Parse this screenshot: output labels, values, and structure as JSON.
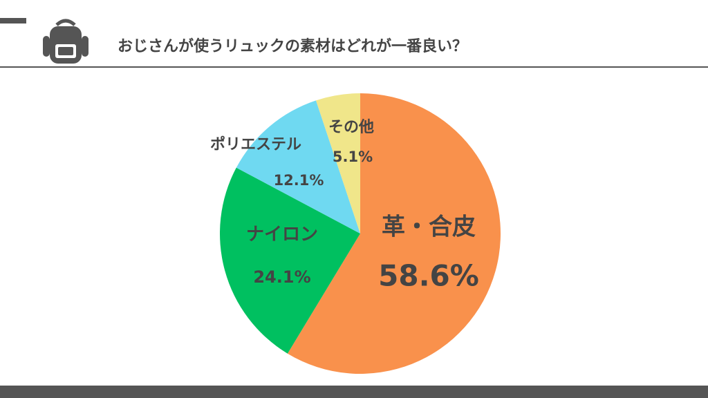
{
  "chart_data": {
    "type": "pie",
    "title": "おじさんが使うリュックの素材はどれが一番良い？",
    "categories": [
      "革・合皮",
      "ナイロン",
      "ポリエステル",
      "その他"
    ],
    "values": [
      58.6,
      24.1,
      12.1,
      5.1
    ],
    "value_labels": [
      "58.6%",
      "24.1%",
      "12.1%",
      "5.1%"
    ],
    "colors": [
      "#f9914c",
      "#00c060",
      "#6fd9f1",
      "#f0e68a"
    ]
  }
}
